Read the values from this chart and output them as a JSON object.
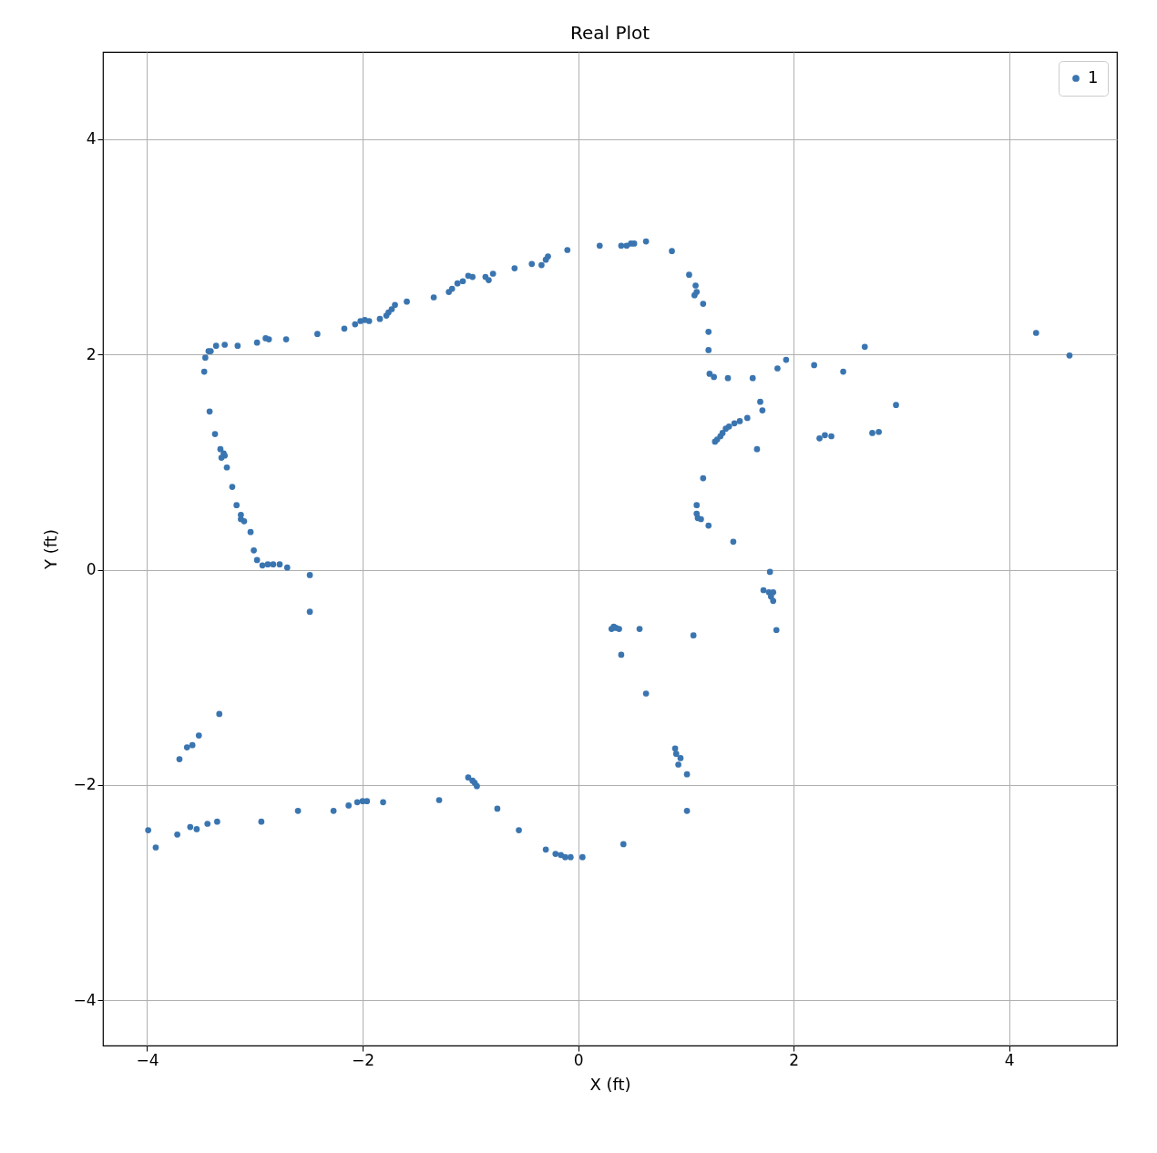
{
  "chart_data": {
    "type": "scatter",
    "title": "Real Plot",
    "xlabel": "X (ft)",
    "ylabel": "Y (ft)",
    "xlim": [
      -4.41,
      5.0
    ],
    "ylim": [
      -4.42,
      4.81
    ],
    "xticks": [
      {
        "value": -4,
        "label": "−4"
      },
      {
        "value": -2,
        "label": "−2"
      },
      0,
      2,
      4
    ],
    "yticks": [
      {
        "value": -4,
        "label": "−4"
      },
      {
        "value": -2,
        "label": "−2"
      },
      0,
      2,
      4
    ],
    "grid": true,
    "legend": "top right",
    "marker": "circle",
    "series": [
      {
        "name": "1",
        "color": "#3a75b0",
        "x": [
          -3.47,
          -3.46,
          -3.43,
          -3.41,
          -3.36,
          -3.28,
          -3.16,
          -2.98,
          -2.9,
          -2.87,
          -2.71,
          -2.42,
          -2.17,
          -2.07,
          -2.02,
          -1.98,
          -1.94,
          -1.84,
          -1.78,
          -1.76,
          -1.73,
          -1.7,
          -1.59,
          -1.34,
          -1.2,
          -1.17,
          -1.12,
          -1.07,
          -1.02,
          -0.98,
          -0.86,
          -0.83,
          -0.79,
          -0.59,
          -0.43,
          -0.34,
          -0.3,
          -0.28,
          -0.1,
          0.2,
          0.4,
          0.45,
          0.49,
          0.52,
          0.63,
          0.87,
          1.03,
          1.09,
          1.1,
          1.08,
          1.16,
          1.21,
          1.21,
          1.22,
          1.26,
          1.39,
          1.62,
          1.85,
          1.93,
          2.19,
          2.46,
          2.66,
          2.95,
          4.25,
          4.56,
          1.69,
          1.71,
          1.57,
          1.5,
          1.45,
          1.4,
          1.37,
          1.34,
          1.32,
          1.29,
          1.27,
          1.66,
          2.24,
          2.29,
          2.35,
          2.73,
          2.79,
          1.16,
          1.1,
          1.1,
          1.11,
          1.14,
          1.21,
          1.44,
          1.78,
          1.72,
          1.77,
          1.81,
          1.79,
          1.81,
          1.84,
          1.07,
          -3.42,
          -3.37,
          -3.32,
          -3.29,
          -3.31,
          -3.28,
          -3.26,
          -3.21,
          -3.17,
          -3.13,
          -3.13,
          -3.1,
          -3.04,
          -3.01,
          -2.98,
          -2.93,
          -2.88,
          -2.83,
          -2.77,
          -2.7,
          -2.49,
          -2.49,
          -3.33,
          -3.52,
          -3.58,
          -3.63,
          -3.7,
          -3.99,
          -3.92,
          -3.72,
          -3.6,
          -3.54,
          -3.44,
          -3.35,
          -2.94,
          -2.6,
          -2.27,
          -2.13,
          -2.05,
          -2.0,
          -1.96,
          -1.81,
          -1.29,
          -1.02,
          -0.98,
          -0.96,
          -0.94,
          -0.75,
          -0.55,
          -0.3,
          -0.21,
          -0.16,
          -0.12,
          -0.07,
          0.04,
          0.42,
          1.01,
          1.01,
          0.95,
          0.93,
          0.91,
          0.9,
          0.63,
          0.4,
          0.57,
          0.31,
          0.35,
          0.38,
          0.33
        ],
        "values": [
          1.84,
          1.97,
          2.03,
          2.03,
          2.08,
          2.09,
          2.08,
          2.11,
          2.15,
          2.14,
          2.14,
          2.19,
          2.24,
          2.28,
          2.31,
          2.32,
          2.31,
          2.33,
          2.36,
          2.39,
          2.42,
          2.46,
          2.49,
          2.53,
          2.58,
          2.61,
          2.66,
          2.68,
          2.73,
          2.72,
          2.72,
          2.69,
          2.75,
          2.8,
          2.84,
          2.83,
          2.88,
          2.91,
          2.97,
          3.01,
          3.01,
          3.01,
          3.03,
          3.03,
          3.05,
          2.96,
          2.74,
          2.64,
          2.58,
          2.55,
          2.47,
          2.21,
          2.04,
          1.82,
          1.79,
          1.78,
          1.78,
          1.87,
          1.95,
          1.9,
          1.84,
          2.07,
          1.53,
          2.2,
          1.99,
          1.56,
          1.48,
          1.41,
          1.38,
          1.36,
          1.33,
          1.31,
          1.27,
          1.24,
          1.21,
          1.19,
          1.12,
          1.22,
          1.25,
          1.24,
          1.27,
          1.28,
          0.85,
          0.6,
          0.52,
          0.48,
          0.47,
          0.41,
          0.26,
          -0.02,
          -0.19,
          -0.21,
          -0.21,
          -0.25,
          -0.29,
          -0.56,
          -0.61,
          1.47,
          1.26,
          1.12,
          1.08,
          1.04,
          1.06,
          0.95,
          0.77,
          0.6,
          0.51,
          0.47,
          0.45,
          0.35,
          0.18,
          0.09,
          0.04,
          0.05,
          0.05,
          0.05,
          0.02,
          -0.05,
          -0.39,
          -1.34,
          -1.54,
          -1.63,
          -1.65,
          -1.76,
          -2.42,
          -2.58,
          -2.46,
          -2.39,
          -2.41,
          -2.36,
          -2.34,
          -2.34,
          -2.24,
          -2.24,
          -2.19,
          -2.16,
          -2.15,
          -2.15,
          -2.16,
          -2.14,
          -1.93,
          -1.96,
          -1.98,
          -2.01,
          -2.22,
          -2.42,
          -2.6,
          -2.64,
          -2.65,
          -2.67,
          -2.67,
          -2.67,
          -2.55,
          -2.24,
          -1.9,
          -1.75,
          -1.81,
          -1.71,
          -1.66,
          -1.15,
          -0.79,
          -0.55,
          -0.55,
          -0.54,
          -0.55,
          -0.53
        ]
      }
    ]
  }
}
